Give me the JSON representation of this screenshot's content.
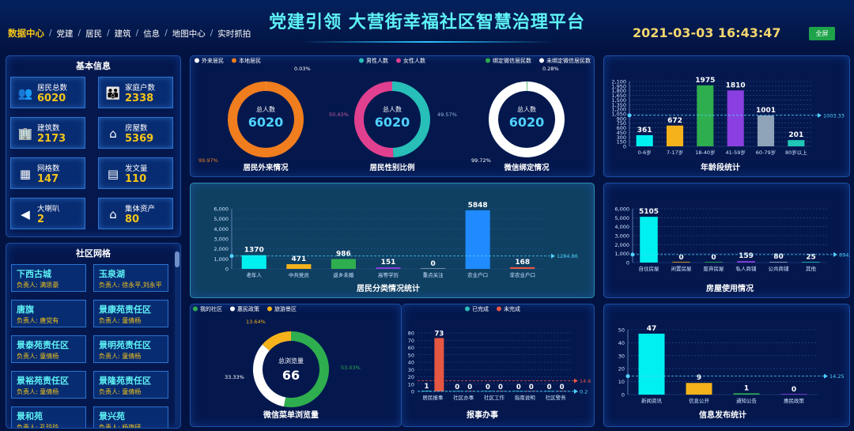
{
  "header": {
    "nav": [
      "数据中心",
      "党建",
      "居民",
      "建筑",
      "信息",
      "地图中心",
      "实时抓拍"
    ],
    "title": "党建引领 大营街幸福社区智慧治理平台",
    "datetime": "2021-03-03 16:43:47",
    "fullscreen_label": "全屏"
  },
  "basic_info": {
    "title": "基本信息",
    "cards": [
      {
        "label": "居民总数",
        "value": "6020",
        "icon": "people-icon"
      },
      {
        "label": "家庭户数",
        "value": "2338",
        "icon": "family-icon"
      },
      {
        "label": "建筑数",
        "value": "2173",
        "icon": "building-icon"
      },
      {
        "label": "房屋数",
        "value": "5369",
        "icon": "house-icon"
      },
      {
        "label": "网格数",
        "value": "147",
        "icon": "grid-icon"
      },
      {
        "label": "发文量",
        "value": "110",
        "icon": "document-icon"
      },
      {
        "label": "大喇叭",
        "value": "2",
        "icon": "speaker-icon"
      },
      {
        "label": "集体资产",
        "value": "80",
        "icon": "asset-icon"
      }
    ]
  },
  "grid_list": {
    "title": "社区网格",
    "items": [
      {
        "name": "下西古城",
        "person": "负责人: 满思豪"
      },
      {
        "name": "玉泉湖",
        "person": "负责人: 徐永平,刘永平"
      },
      {
        "name": "唐旗",
        "person": "负责人: 唐党有"
      },
      {
        "name": "景康苑责任区",
        "person": "负责人: 童倩杨"
      },
      {
        "name": "景泰苑责任区",
        "person": "负责人: 童倩杨"
      },
      {
        "name": "景明苑责任区",
        "person": "负责人: 童倩杨"
      },
      {
        "name": "景裕苑责任区",
        "person": "负责人: 童倩杨"
      },
      {
        "name": "景隆苑责任区",
        "person": "负责人: 童倩杨"
      },
      {
        "name": "景和苑",
        "person": "负责人: 孔玲玲"
      },
      {
        "name": "景兴苑",
        "person": "负责人: 杨旗研"
      }
    ]
  },
  "donuts": {
    "legends": [
      [
        {
          "name": "外来居民",
          "color": "#ffffff"
        },
        {
          "name": "本地居民",
          "color": "#f07d1e"
        }
      ],
      [
        {
          "name": "男性人数",
          "color": "#27bfb8"
        },
        {
          "name": "女性人数",
          "color": "#e0408f"
        }
      ],
      [
        {
          "name": "绑定微信居民数",
          "color": "#2eae4e"
        },
        {
          "name": "未绑定微信居民数",
          "color": "#ffffff"
        }
      ]
    ],
    "charts": [
      {
        "title": "居民外来情况",
        "center_label": "总人数",
        "center_value": "6020",
        "labels": [
          "0.03%",
          "99.97%"
        ],
        "values": [
          0.03,
          99.97
        ],
        "colors": [
          "#ffffff",
          "#f07d1e"
        ]
      },
      {
        "title": "居民性别比例",
        "center_label": "总人数",
        "center_value": "6020",
        "labels": [
          "49.57%",
          "50.43%"
        ],
        "values": [
          49.57,
          50.43
        ],
        "colors": [
          "#27bfb8",
          "#e0408f"
        ]
      },
      {
        "title": "微信绑定情况",
        "center_label": "总人数",
        "center_value": "6020",
        "labels": [
          "0.28%",
          "99.72%"
        ],
        "values": [
          0.28,
          99.72
        ],
        "colors": [
          "#2eae4e",
          "#ffffff"
        ]
      }
    ]
  },
  "age_chart": {
    "title": "年龄段统计",
    "categories": [
      "0-6岁",
      "7-17岁",
      "18-40岁",
      "41-59岁",
      "60-79岁",
      "80岁以上"
    ],
    "values": [
      361,
      672,
      1975,
      1810,
      1001,
      201
    ],
    "colors": [
      "#00f0f0",
      "#f5b21b",
      "#2eae4e",
      "#8a3fe0",
      "#8fa3b8",
      "#1fc8b6"
    ],
    "y_ticks": [
      "0",
      "150",
      "300",
      "450",
      "600",
      "750",
      "900",
      "1,050",
      "1,200",
      "1,350",
      "1,500",
      "1,650",
      "1,800",
      "1,950",
      "2,100"
    ],
    "avg_label": "1003.33",
    "avg": 1003.33,
    "ymax": 2100
  },
  "category_chart": {
    "title": "居民分类情况统计",
    "categories": [
      "老年人",
      "中共党员",
      "返乡未婚",
      "高等学历",
      "重点关注",
      "农业户口",
      "非农业户口"
    ],
    "values": [
      1370,
      471,
      986,
      151,
      0,
      5848,
      168
    ],
    "colors": [
      "#00f0f0",
      "#f5b21b",
      "#2eae4e",
      "#8a3fe0",
      "#8fa3b8",
      "#1f8bff",
      "#e55643"
    ],
    "y_ticks": [
      "0",
      "1,000",
      "2,000",
      "3,000",
      "4,000",
      "5,000",
      "6,000"
    ],
    "avg_label": "1284.86",
    "avg": 1284.86,
    "ymax": 6000
  },
  "house_chart": {
    "title": "房屋使用情况",
    "categories": [
      "自住房屋",
      "闲置房屋",
      "废弃房屋",
      "私人商铺",
      "公共商铺",
      "其他"
    ],
    "values": [
      5105,
      0,
      0,
      159,
      80,
      25
    ],
    "colors": [
      "#00f0f0",
      "#f5b21b",
      "#2eae4e",
      "#8a3fe0",
      "#8fa3b8",
      "#1fc8b6"
    ],
    "y_ticks": [
      "0",
      "1,000",
      "2,000",
      "3,000",
      "4,000",
      "5,000",
      "6,000"
    ],
    "avg_label": "894.83",
    "avg": 894.83,
    "ymax": 6000
  },
  "menu_chart": {
    "title": "微信菜单浏览量",
    "legends": [
      {
        "name": "我的社区",
        "color": "#2eae4e"
      },
      {
        "name": "惠民政策",
        "color": "#ffffff"
      },
      {
        "name": "旅游景区",
        "color": "#f5b21b"
      }
    ],
    "center_label": "总浏览量",
    "center_value": "66",
    "labels": [
      "53.03%",
      "33.33%",
      "13.64%"
    ],
    "values": [
      53.03,
      33.33,
      13.64
    ],
    "colors": [
      "#2eae4e",
      "#ffffff",
      "#f5b21b"
    ]
  },
  "report_chart": {
    "title": "报事办事",
    "legends": [
      {
        "name": "已完成",
        "color": "#27bfb8"
      },
      {
        "name": "未完成",
        "color": "#e55643"
      }
    ],
    "categories": [
      "居民报事",
      "社区办事",
      "社区工作",
      "指南说明",
      "社区警务"
    ],
    "done": [
      1,
      0,
      0,
      0,
      0
    ],
    "undone": [
      73,
      0,
      0,
      0,
      0
    ],
    "y_ticks": [
      "0",
      "10",
      "20",
      "30",
      "40",
      "50",
      "60",
      "70",
      "80"
    ],
    "avg_done_label": "0.2",
    "avg_done": 0.2,
    "avg_undone_label": "14.6",
    "avg_undone": 14.6,
    "ymax": 80
  },
  "info_chart": {
    "title": "信息发布统计",
    "categories": [
      "新闻资讯",
      "信息公开",
      "通知公告",
      "惠民政策"
    ],
    "values": [
      47,
      9,
      1,
      0
    ],
    "colors": [
      "#00f0f0",
      "#f5b21b",
      "#2eae4e",
      "#8a3fe0"
    ],
    "y_ticks": [
      "0",
      "10",
      "20",
      "30",
      "40",
      "50"
    ],
    "avg_label": "14.25",
    "avg": 14.25,
    "ymax": 50
  }
}
